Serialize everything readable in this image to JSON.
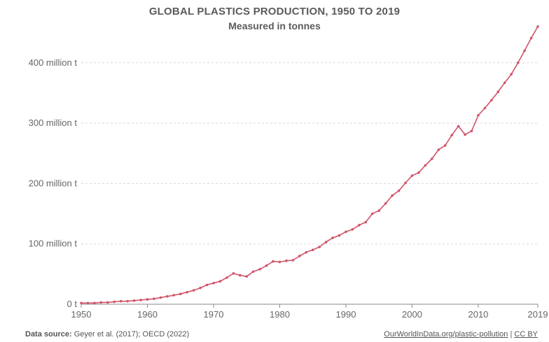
{
  "chart_data": {
    "type": "line",
    "title": "GLOBAL PLASTICS PRODUCTION, 1950 TO 2019",
    "subtitle": "Measured in tonnes",
    "xlabel": "",
    "ylabel": "",
    "xlim": [
      1950,
      2019
    ],
    "ylim": [
      0,
      460
    ],
    "y_unit": "million t",
    "x_ticks": [
      "1950",
      "1960",
      "1970",
      "1980",
      "1990",
      "2000",
      "2010",
      "2019"
    ],
    "y_ticks": [
      "0 t",
      "100 million t",
      "200 million t",
      "300 million t",
      "400 million t"
    ],
    "y_tick_values": [
      0,
      100,
      200,
      300,
      400
    ],
    "grid": "horizontal dashed",
    "series": [
      {
        "color": "#d0546a",
        "x": [
          1950,
          1951,
          1952,
          1953,
          1954,
          1955,
          1956,
          1957,
          1958,
          1959,
          1960,
          1961,
          1962,
          1963,
          1964,
          1965,
          1966,
          1967,
          1968,
          1969,
          1970,
          1971,
          1972,
          1973,
          1974,
          1975,
          1976,
          1977,
          1978,
          1979,
          1980,
          1981,
          1982,
          1983,
          1984,
          1985,
          1986,
          1987,
          1988,
          1989,
          1990,
          1991,
          1992,
          1993,
          1994,
          1995,
          1996,
          1997,
          1998,
          1999,
          2000,
          2001,
          2002,
          2003,
          2004,
          2005,
          2006,
          2007,
          2008,
          2009,
          2010,
          2011,
          2012,
          2013,
          2014,
          2015,
          2016,
          2017,
          2018,
          2019
        ],
        "values": [
          2,
          2,
          2,
          3,
          3,
          4,
          5,
          5,
          6,
          7,
          8,
          9,
          11,
          13,
          15,
          17,
          20,
          23,
          27,
          32,
          35,
          38,
          44,
          51,
          48,
          46,
          54,
          58,
          64,
          71,
          70,
          72,
          73,
          80,
          86,
          90,
          95,
          103,
          110,
          114,
          120,
          124,
          131,
          136,
          150,
          155,
          167,
          180,
          188,
          201,
          213,
          218,
          230,
          241,
          256,
          263,
          280,
          295,
          281,
          287,
          313,
          325,
          338,
          352,
          367,
          381,
          400,
          420,
          441,
          460
        ]
      }
    ]
  },
  "footer": {
    "source_label": "Data source:",
    "source_text": "Geyer et al. (2017); OECD (2022)",
    "link_text": "OurWorldInData.org/plastic-pollution",
    "separator": "|",
    "license": "CC BY"
  }
}
